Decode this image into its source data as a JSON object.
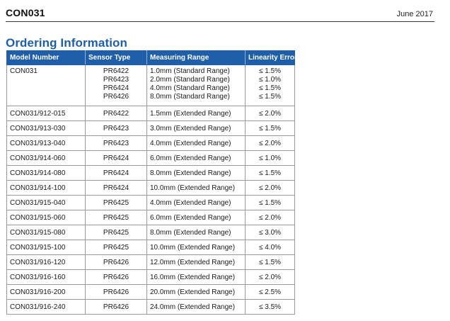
{
  "header": {
    "doc_id": "CON031",
    "date": "June 2017"
  },
  "section_title": "Ordering Information",
  "table": {
    "columns": [
      "Model Number",
      "Sensor Type",
      "Measuring Range",
      "Linearity Error"
    ],
    "base_row": {
      "model": "CON031",
      "sensors": [
        "PR6422",
        "PR6423",
        "PR6424",
        "PR6426"
      ],
      "ranges": [
        "1.0mm (Standard Range)",
        "2.0mm (Standard Range)",
        "4.0mm (Standard Range)",
        "8.0mm (Standard Range)"
      ],
      "linearity": [
        "≤ 1.5%",
        "≤ 1.0%",
        "≤ 1.5%",
        "≤ 1.5%"
      ]
    },
    "rows": [
      {
        "model": "CON031/912-015",
        "sensor": "PR6422",
        "range": "1.5mm (Extended Range)",
        "linearity": "≤ 2.0%"
      },
      {
        "model": "CON031/913-030",
        "sensor": "PR6423",
        "range": "3.0mm (Extended Range)",
        "linearity": "≤ 1.5%"
      },
      {
        "model": "CON031/913-040",
        "sensor": "PR6423",
        "range": "4.0mm (Extended Range)",
        "linearity": "≤ 2.0%"
      },
      {
        "model": "CON031/914-060",
        "sensor": "PR6424",
        "range": "6.0mm (Extended Range)",
        "linearity": "≤ 1.0%"
      },
      {
        "model": "CON031/914-080",
        "sensor": "PR6424",
        "range": "8.0mm (Extended Range)",
        "linearity": "≤ 1.5%"
      },
      {
        "model": "CON031/914-100",
        "sensor": "PR6424",
        "range": "10.0mm (Extended Range)",
        "linearity": "≤ 2.0%"
      },
      {
        "model": "CON031/915-040",
        "sensor": "PR6425",
        "range": "4.0mm (Extended Range)",
        "linearity": "≤ 1.5%"
      },
      {
        "model": "CON031/915-060",
        "sensor": "PR6425",
        "range": "6.0mm (Extended Range)",
        "linearity": "≤ 2.0%"
      },
      {
        "model": "CON031/915-080",
        "sensor": "PR6425",
        "range": "8.0mm (Extended Range)",
        "linearity": "≤ 3.0%"
      },
      {
        "model": "CON031/915-100",
        "sensor": "PR6425",
        "range": "10.0mm (Extended Range)",
        "linearity": "≤ 4.0%"
      },
      {
        "model": "CON031/916-120",
        "sensor": "PR6426",
        "range": "12.0mm (Extended Range)",
        "linearity": "≤ 1.5%"
      },
      {
        "model": "CON031/916-160",
        "sensor": "PR6426",
        "range": "16.0mm (Extended Range)",
        "linearity": "≤ 2.0%"
      },
      {
        "model": "CON031/916-200",
        "sensor": "PR6426",
        "range": "20.0mm (Extended Range)",
        "linearity": "≤ 2.5%"
      },
      {
        "model": "CON031/916-240",
        "sensor": "PR6426",
        "range": "24.0mm (Extended Range)",
        "linearity": "≤ 3.5%"
      }
    ]
  },
  "colors": {
    "accent": "#1f5ea8",
    "header_text": "#ffffff",
    "grid": "#9a9a9a"
  }
}
